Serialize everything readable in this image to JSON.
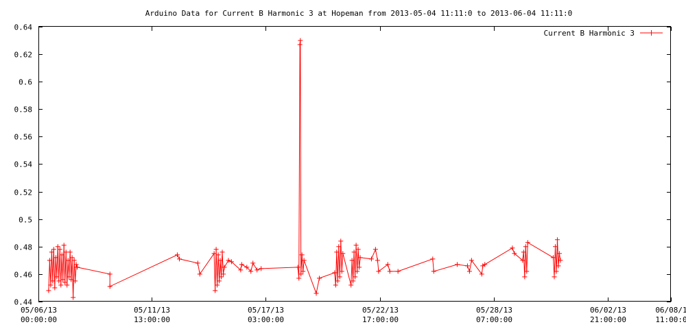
{
  "chart_data": {
    "type": "line",
    "title": "Arduino Data for Current B Harmonic 3 at Hopeman from 2013-05-04 11:11:0 to 2013-06-04 11:11:0",
    "xlabel": "",
    "ylabel": "",
    "xlim": [
      0,
      30.9583
    ],
    "ylim": [
      0.44,
      0.64
    ],
    "grid": false,
    "legend": "top-right",
    "line_color": "#ff0000",
    "x_ticks": [
      {
        "x": 0,
        "label": [
          "05/06/13",
          "00:00:00"
        ]
      },
      {
        "x": 5.5417,
        "label": [
          "05/11/13",
          "13:00:00"
        ]
      },
      {
        "x": 11.125,
        "label": [
          "05/17/13",
          "03:00:00"
        ]
      },
      {
        "x": 16.7083,
        "label": [
          "05/22/13",
          "17:00:00"
        ]
      },
      {
        "x": 22.2917,
        "label": [
          "05/28/13",
          "07:00:00"
        ]
      },
      {
        "x": 27.875,
        "label": [
          "06/02/13",
          "21:00:00"
        ]
      },
      {
        "x": 30.9583,
        "label": [
          "06/08/1",
          "11:00:0"
        ]
      }
    ],
    "y_ticks": [
      {
        "y": 0.44,
        "label": "0.44"
      },
      {
        "y": 0.46,
        "label": "0.46"
      },
      {
        "y": 0.48,
        "label": "0.48"
      },
      {
        "y": 0.5,
        "label": "0.5"
      },
      {
        "y": 0.52,
        "label": "0.52"
      },
      {
        "y": 0.54,
        "label": "0.54"
      },
      {
        "y": 0.56,
        "label": "0.56"
      },
      {
        "y": 0.58,
        "label": "0.58"
      },
      {
        "y": 0.6,
        "label": "0.6"
      },
      {
        "y": 0.62,
        "label": "0.62"
      },
      {
        "y": 0.64,
        "label": "0.64"
      }
    ],
    "series": [
      {
        "name": "Current B Harmonic 3",
        "x_unit": "days since 05/06/13 00:00:00",
        "points": [
          [
            0.5,
            0.448
          ],
          [
            0.55,
            0.47
          ],
          [
            0.6,
            0.452
          ],
          [
            0.65,
            0.476
          ],
          [
            0.7,
            0.455
          ],
          [
            0.75,
            0.478
          ],
          [
            0.8,
            0.45
          ],
          [
            0.85,
            0.472
          ],
          [
            0.9,
            0.458
          ],
          [
            0.95,
            0.48
          ],
          [
            1.0,
            0.455
          ],
          [
            1.05,
            0.478
          ],
          [
            1.1,
            0.452
          ],
          [
            1.15,
            0.474
          ],
          [
            1.2,
            0.456
          ],
          [
            1.25,
            0.481
          ],
          [
            1.3,
            0.454
          ],
          [
            1.35,
            0.476
          ],
          [
            1.4,
            0.452
          ],
          [
            1.45,
            0.47
          ],
          [
            1.5,
            0.458
          ],
          [
            1.55,
            0.476
          ],
          [
            1.6,
            0.456
          ],
          [
            1.65,
            0.472
          ],
          [
            1.7,
            0.443
          ],
          [
            1.75,
            0.47
          ],
          [
            1.8,
            0.455
          ],
          [
            1.85,
            0.467
          ],
          [
            1.9,
            0.465
          ],
          [
            3.5,
            0.46
          ],
          [
            3.5,
            0.451
          ],
          [
            6.8,
            0.474
          ],
          [
            6.9,
            0.471
          ],
          [
            7.8,
            0.468
          ],
          [
            7.9,
            0.46
          ],
          [
            8.6,
            0.475
          ],
          [
            8.65,
            0.448
          ],
          [
            8.7,
            0.478
          ],
          [
            8.75,
            0.452
          ],
          [
            8.8,
            0.474
          ],
          [
            8.85,
            0.455
          ],
          [
            8.9,
            0.47
          ],
          [
            8.95,
            0.458
          ],
          [
            9.0,
            0.476
          ],
          [
            9.05,
            0.46
          ],
          [
            9.1,
            0.465
          ],
          [
            9.3,
            0.47
          ],
          [
            9.45,
            0.469
          ],
          [
            9.9,
            0.463
          ],
          [
            9.95,
            0.467
          ],
          [
            10.2,
            0.465
          ],
          [
            10.4,
            0.462
          ],
          [
            10.5,
            0.468
          ],
          [
            10.7,
            0.463
          ],
          [
            10.9,
            0.464
          ],
          [
            12.7,
            0.465
          ],
          [
            12.75,
            0.457
          ],
          [
            12.8,
            0.627
          ],
          [
            12.82,
            0.63
          ],
          [
            12.85,
            0.46
          ],
          [
            12.9,
            0.474
          ],
          [
            12.95,
            0.462
          ],
          [
            13.0,
            0.47
          ],
          [
            13.6,
            0.446
          ],
          [
            13.75,
            0.457
          ],
          [
            14.5,
            0.461
          ],
          [
            14.55,
            0.452
          ],
          [
            14.6,
            0.476
          ],
          [
            14.65,
            0.455
          ],
          [
            14.7,
            0.48
          ],
          [
            14.75,
            0.458
          ],
          [
            14.8,
            0.484
          ],
          [
            14.85,
            0.462
          ],
          [
            14.9,
            0.475
          ],
          [
            15.3,
            0.452
          ],
          [
            15.35,
            0.47
          ],
          [
            15.4,
            0.455
          ],
          [
            15.45,
            0.476
          ],
          [
            15.5,
            0.458
          ],
          [
            15.55,
            0.481
          ],
          [
            15.6,
            0.462
          ],
          [
            15.65,
            0.478
          ],
          [
            15.7,
            0.465
          ],
          [
            15.75,
            0.472
          ],
          [
            16.3,
            0.471
          ],
          [
            16.5,
            0.478
          ],
          [
            16.6,
            0.47
          ],
          [
            16.65,
            0.462
          ],
          [
            17.1,
            0.467
          ],
          [
            17.2,
            0.462
          ],
          [
            17.6,
            0.462
          ],
          [
            19.3,
            0.471
          ],
          [
            19.35,
            0.462
          ],
          [
            20.5,
            0.467
          ],
          [
            21.0,
            0.466
          ],
          [
            21.1,
            0.462
          ],
          [
            21.2,
            0.47
          ],
          [
            21.7,
            0.46
          ],
          [
            21.75,
            0.466
          ],
          [
            21.85,
            0.467
          ],
          [
            23.2,
            0.479
          ],
          [
            23.3,
            0.475
          ],
          [
            23.7,
            0.47
          ],
          [
            23.75,
            0.476
          ],
          [
            23.8,
            0.458
          ],
          [
            23.85,
            0.48
          ],
          [
            23.9,
            0.462
          ],
          [
            23.95,
            0.483
          ],
          [
            25.2,
            0.472
          ],
          [
            25.25,
            0.458
          ],
          [
            25.3,
            0.48
          ],
          [
            25.35,
            0.462
          ],
          [
            25.4,
            0.485
          ],
          [
            25.45,
            0.466
          ],
          [
            25.5,
            0.475
          ],
          [
            25.55,
            0.47
          ]
        ]
      }
    ]
  }
}
